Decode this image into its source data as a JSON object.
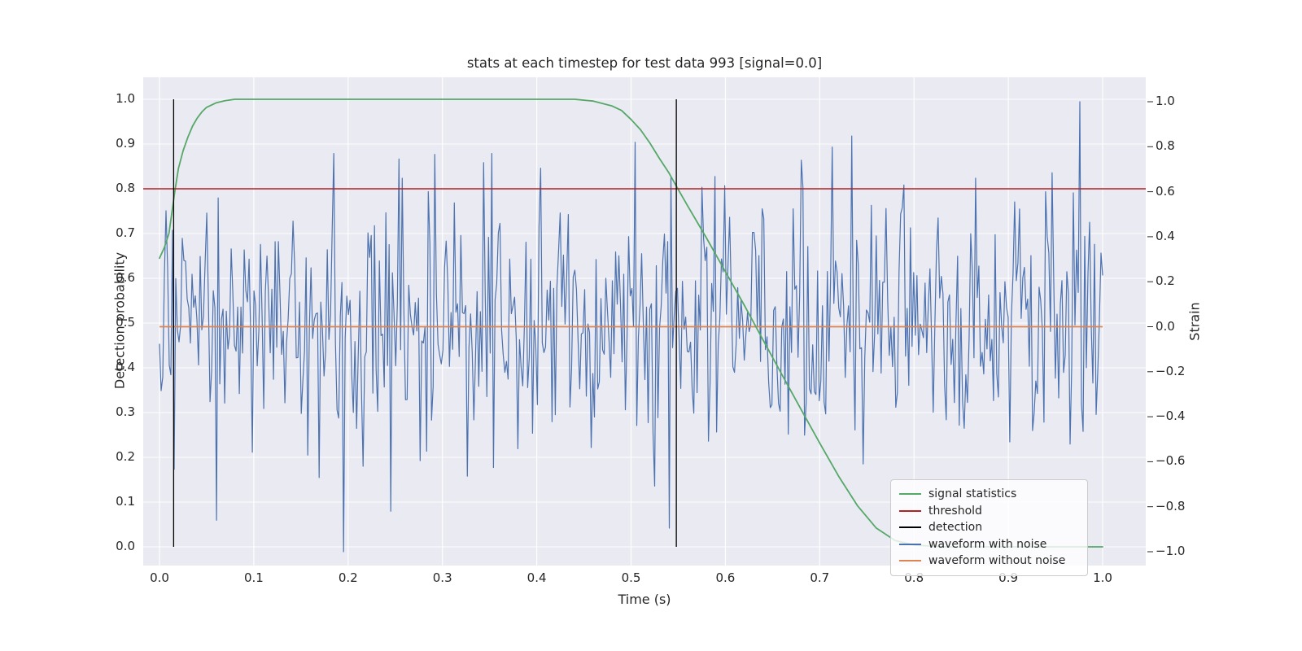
{
  "figure": {
    "title": "stats at each timestep for test data 993 [signal=0.0]",
    "x_label": "Time (s)",
    "y_left_label": "Detection probability",
    "y_right_label": "Strain",
    "plot_background": "#eaeaf2",
    "grid_color": "#ffffff",
    "text_color": "#262626"
  },
  "axes": {
    "x": {
      "values": [
        0.0,
        0.1,
        0.2,
        0.3,
        0.4,
        0.5,
        0.6,
        0.7,
        0.8,
        0.9,
        1.0
      ],
      "labels": [
        "0.0",
        "0.1",
        "0.2",
        "0.3",
        "0.4",
        "0.5",
        "0.6",
        "0.7",
        "0.8",
        "0.9",
        "1.0"
      ]
    },
    "y_left": {
      "values": [
        0.0,
        0.1,
        0.2,
        0.3,
        0.4,
        0.5,
        0.6,
        0.7,
        0.8,
        0.9,
        1.0
      ],
      "labels": [
        "0.0",
        "0.1",
        "0.2",
        "0.3",
        "0.4",
        "0.5",
        "0.6",
        "0.7",
        "0.8",
        "0.9",
        "1.0"
      ]
    },
    "y_right": {
      "values": [
        1.0,
        0.8,
        0.6,
        0.4,
        0.2,
        0.0,
        -0.2,
        -0.4,
        -0.6,
        -0.8,
        -1.0
      ],
      "labels": [
        "1.0",
        "0.8",
        "0.6",
        "0.4",
        "0.2",
        "0.0",
        "−0.2",
        "−0.4",
        "−0.6",
        "−0.8",
        "−1.0"
      ]
    }
  },
  "legend": {
    "entries": [
      {
        "label": "signal statistics",
        "color": "#55a868"
      },
      {
        "label": "threshold",
        "color": "#b22222"
      },
      {
        "label": "detection",
        "color": "#000000"
      },
      {
        "label": "waveform with noise",
        "color": "#4c72b0"
      },
      {
        "label": "waveform without noise",
        "color": "#dd8452"
      }
    ]
  },
  "chart_data": {
    "type": "line",
    "title": "stats at each timestep for test data 993 [signal=0.0]",
    "xlabel": "Time (s)",
    "ylabel_left": "Detection probability",
    "ylabel_right": "Strain",
    "xlim": [
      0.0,
      1.0
    ],
    "ylim_left": [
      0.0,
      1.0
    ],
    "ylim_right": [
      -1.0,
      1.0
    ],
    "grid": true,
    "legend_position": "lower right",
    "series": [
      {
        "name": "signal statistics",
        "axis": "left",
        "color": "#55a868",
        "style": "line",
        "width": 1.8,
        "points": [
          [
            0.0,
            0.645
          ],
          [
            0.005,
            0.668
          ],
          [
            0.01,
            0.7
          ],
          [
            0.013,
            0.745
          ],
          [
            0.016,
            0.79
          ],
          [
            0.02,
            0.845
          ],
          [
            0.025,
            0.885
          ],
          [
            0.03,
            0.915
          ],
          [
            0.035,
            0.94
          ],
          [
            0.04,
            0.958
          ],
          [
            0.045,
            0.972
          ],
          [
            0.05,
            0.982
          ],
          [
            0.06,
            0.992
          ],
          [
            0.07,
            0.997
          ],
          [
            0.08,
            1.0
          ],
          [
            0.15,
            1.0
          ],
          [
            0.25,
            1.0
          ],
          [
            0.35,
            1.0
          ],
          [
            0.42,
            1.0
          ],
          [
            0.44,
            1.0
          ],
          [
            0.46,
            0.996
          ],
          [
            0.48,
            0.985
          ],
          [
            0.49,
            0.975
          ],
          [
            0.5,
            0.955
          ],
          [
            0.51,
            0.932
          ],
          [
            0.52,
            0.902
          ],
          [
            0.53,
            0.868
          ],
          [
            0.54,
            0.836
          ],
          [
            0.548,
            0.806
          ],
          [
            0.56,
            0.762
          ],
          [
            0.58,
            0.69
          ],
          [
            0.6,
            0.615
          ],
          [
            0.62,
            0.54
          ],
          [
            0.64,
            0.462
          ],
          [
            0.66,
            0.385
          ],
          [
            0.68,
            0.308
          ],
          [
            0.7,
            0.232
          ],
          [
            0.72,
            0.158
          ],
          [
            0.74,
            0.092
          ],
          [
            0.76,
            0.042
          ],
          [
            0.78,
            0.014
          ],
          [
            0.8,
            0.004
          ],
          [
            0.83,
            0.0
          ],
          [
            0.9,
            0.0
          ],
          [
            1.0,
            0.0
          ]
        ]
      },
      {
        "name": "threshold",
        "axis": "left",
        "color": "#b22222",
        "style": "hline",
        "width": 1.4,
        "value": 0.8,
        "span": "full"
      },
      {
        "name": "detection",
        "axis": "left",
        "color": "#000000",
        "style": "vlines",
        "width": 1.3,
        "x_values": [
          0.015,
          0.548
        ],
        "y_span": [
          0.0,
          1.0
        ]
      },
      {
        "name": "waveform with noise",
        "axis": "right",
        "color": "#4c72b0",
        "style": "noise_line",
        "width": 1.2,
        "x_range": [
          0.0,
          1.0
        ],
        "n_points": 580,
        "mean": 0.0,
        "std": 0.28,
        "clip": [
          -1.0,
          1.0
        ],
        "seed": 993,
        "peaks": [
          [
            0.185,
            0.77
          ],
          [
            0.195,
            -1.0
          ],
          [
            0.245,
            -0.82
          ],
          [
            0.258,
            0.66
          ],
          [
            0.352,
            0.77
          ],
          [
            0.505,
            0.82
          ],
          [
            0.575,
            0.62
          ],
          [
            0.68,
            0.74
          ],
          [
            0.79,
            0.63
          ],
          [
            0.865,
            0.66
          ],
          [
            0.94,
            0.6
          ],
          [
            0.975,
            1.0
          ]
        ]
      },
      {
        "name": "waveform without noise",
        "axis": "right",
        "color": "#dd8452",
        "style": "hline",
        "width": 1.8,
        "value": 0.0,
        "span": "data",
        "x_span": [
          0.0,
          1.0
        ]
      }
    ]
  }
}
